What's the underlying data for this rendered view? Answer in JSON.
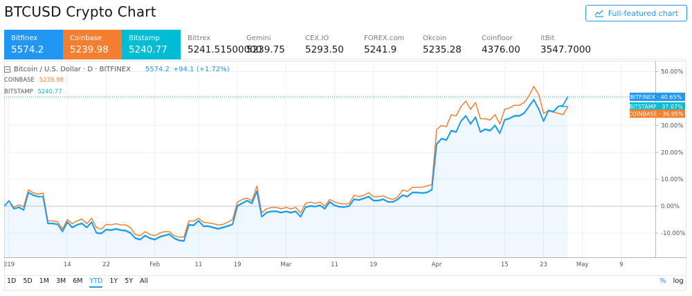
{
  "title": "BTCUSD Crypto Chart",
  "full_button": "Full-featured chart",
  "tabs": [
    {
      "name": "Bitfinex",
      "value": "5574.2",
      "bg": "#2196f3"
    },
    {
      "name": "Coinbase",
      "value": "5239.98",
      "bg": "#f57f30"
    },
    {
      "name": "Bitstamp",
      "value": "5240.77",
      "bg": "#00bcd4"
    },
    {
      "name": "Bittrex",
      "value": "5241.51500000"
    },
    {
      "name": "Gemini",
      "value": "5239.75"
    },
    {
      "name": "CEX.IO",
      "value": "5293.50"
    },
    {
      "name": "FOREX.com",
      "value": "5241.9"
    },
    {
      "name": "Okcoin",
      "value": "5235.28"
    },
    {
      "name": "Coinfloor",
      "value": "4376.00"
    },
    {
      "name": "itBit",
      "value": "3547.7000"
    }
  ],
  "legend": {
    "main_symbol": "Bitcoin / U.S. Dollar · D · BITFINEX",
    "main_value": "5574.2",
    "main_change": "+94.1 (+1.72%)",
    "compare": [
      {
        "name": "COINBASE",
        "value": "5239.98"
      },
      {
        "name": "BITSTAMP",
        "value": "5240.77"
      }
    ]
  },
  "range_buttons": [
    "1D",
    "5D",
    "1M",
    "3M",
    "6M",
    "YTD",
    "1Y",
    "5Y",
    "All"
  ],
  "active_range": "YTD",
  "scale_buttons": [
    "%",
    "log"
  ],
  "colors": {
    "bitfinex": "#2196f3",
    "coinbase": "#f57f30",
    "bitstamp": "#00bcd4"
  },
  "chart_data": {
    "type": "line",
    "y_unit": "percent",
    "ylim": [
      -19,
      54
    ],
    "y_ticks": [
      "50.00%",
      "40.00%",
      "30.00%",
      "20.00%",
      "10.00%",
      "0.00%",
      "-10.00%"
    ],
    "x_tick_labels": [
      "019",
      "14",
      "22",
      "Feb",
      "11",
      "19",
      "Mar",
      "11",
      "19",
      "Apr",
      "15",
      "23",
      "May",
      "9"
    ],
    "x_tick_positions": [
      1,
      13,
      21,
      31,
      40,
      48,
      58,
      68,
      76,
      89,
      103,
      111,
      119,
      127
    ],
    "x_range": [
      0,
      134
    ],
    "series": [
      {
        "name": "BITFINEX",
        "label": "40.65%",
        "values": [
          0.0,
          2.0,
          -1.0,
          -0.5,
          -1.5,
          5.0,
          4.0,
          3.5,
          3.5,
          -6.5,
          -6.5,
          -6.8,
          -9.5,
          -6.0,
          -8.0,
          -7.0,
          -6.5,
          -8.0,
          -6.0,
          -10.0,
          -10.2,
          -8.8,
          -9.0,
          -8.5,
          -9.0,
          -9.2,
          -10.0,
          -12.0,
          -12.5,
          -11.0,
          -12.0,
          -12.5,
          -11.5,
          -11.0,
          -10.5,
          -12.0,
          -12.8,
          -13.0,
          -7.0,
          -7.2,
          -5.5,
          -7.5,
          -7.5,
          -8.0,
          -8.5,
          -8.0,
          -7.5,
          -6.8,
          0.0,
          1.0,
          2.0,
          1.0,
          5.5,
          -4.0,
          -2.5,
          -2.0,
          -2.0,
          -2.5,
          -2.0,
          -2.5,
          -2.0,
          -4.0,
          -0.5,
          0.0,
          -0.2,
          0.2,
          -1.0,
          1.5,
          0.2,
          -0.3,
          -0.4,
          0.0,
          2.5,
          2.2,
          2.8,
          3.5,
          2.0,
          2.0,
          2.5,
          1.5,
          1.5,
          2.5,
          4.0,
          3.5,
          5.0,
          5.0,
          4.8,
          5.0,
          6.0,
          23.0,
          25.0,
          24.5,
          28.0,
          27.5,
          31.5,
          33.5,
          30.5,
          33.0,
          27.5,
          28.5,
          28.0,
          30.0,
          27.0,
          32.0,
          32.5,
          33.5,
          33.5,
          34.5,
          37.0,
          39.5,
          36.0,
          31.5,
          35.5,
          35.0,
          37.0,
          37.5,
          40.65
        ]
      },
      {
        "name": "BITSTAMP",
        "label": "37.07%",
        "values": [
          0.0,
          2.0,
          -1.0,
          -0.3,
          -1.3,
          5.2,
          4.2,
          3.6,
          3.6,
          -6.3,
          -6.3,
          -6.7,
          -9.3,
          -5.8,
          -7.8,
          -6.8,
          -6.3,
          -7.8,
          -5.8,
          -9.8,
          -10.0,
          -8.6,
          -8.8,
          -8.3,
          -8.8,
          -9.0,
          -9.8,
          -11.8,
          -12.3,
          -10.8,
          -11.8,
          -12.3,
          -11.3,
          -10.8,
          -10.3,
          -11.8,
          -12.6,
          -12.8,
          -6.8,
          -7.0,
          -5.3,
          -7.3,
          -7.3,
          -7.8,
          -8.3,
          -7.8,
          -7.3,
          -6.6,
          0.2,
          1.2,
          2.2,
          1.2,
          5.7,
          -3.8,
          -2.3,
          -1.8,
          -1.8,
          -2.3,
          -1.8,
          -2.3,
          -1.8,
          -3.8,
          -0.3,
          0.2,
          0.0,
          0.4,
          -0.8,
          1.7,
          0.4,
          -0.1,
          -0.2,
          0.2,
          2.7,
          2.4,
          3.0,
          3.7,
          2.2,
          2.2,
          2.7,
          1.7,
          1.7,
          2.7,
          4.2,
          3.7,
          5.2,
          5.2,
          5.0,
          5.2,
          6.2,
          23.2,
          25.2,
          24.7,
          28.2,
          27.7,
          31.7,
          33.7,
          30.7,
          33.2,
          27.7,
          28.7,
          28.2,
          30.2,
          27.2,
          32.2,
          32.7,
          33.7,
          33.7,
          34.7,
          37.2,
          39.7,
          36.2,
          31.7,
          35.7,
          35.2,
          37.2,
          37.0,
          37.07
        ]
      },
      {
        "name": "COINBASE",
        "label": "36.95%",
        "values": [
          0.0,
          2.0,
          -0.5,
          0.5,
          -0.3,
          6.0,
          5.0,
          4.5,
          4.8,
          -5.5,
          -5.5,
          -5.8,
          -8.5,
          -5.0,
          -6.5,
          -5.5,
          -4.8,
          -6.5,
          -4.5,
          -8.0,
          -8.5,
          -6.8,
          -7.0,
          -6.5,
          -7.0,
          -7.0,
          -8.0,
          -10.5,
          -11.0,
          -9.5,
          -10.5,
          -11.0,
          -10.0,
          -9.5,
          -9.5,
          -11.0,
          -11.5,
          -11.5,
          -5.5,
          -5.5,
          -4.5,
          -6.0,
          -6.2,
          -6.5,
          -7.0,
          -6.8,
          -6.0,
          -5.0,
          1.5,
          2.5,
          3.0,
          2.0,
          7.5,
          -2.5,
          -1.0,
          -0.5,
          -0.5,
          -1.0,
          -0.5,
          -1.0,
          -0.5,
          -2.5,
          1.0,
          1.5,
          1.0,
          1.5,
          0.0,
          2.5,
          1.5,
          1.0,
          0.8,
          1.0,
          4.0,
          3.5,
          4.0,
          5.0,
          3.5,
          3.5,
          3.8,
          3.0,
          2.5,
          3.5,
          6.0,
          5.5,
          7.0,
          7.0,
          7.0,
          7.5,
          8.0,
          28.5,
          30.0,
          29.5,
          34.0,
          33.5,
          37.0,
          39.0,
          36.0,
          38.5,
          32.5,
          32.5,
          32.0,
          34.0,
          30.5,
          36.0,
          36.5,
          37.5,
          37.5,
          38.5,
          41.0,
          44.5,
          41.5,
          34.5,
          35.5,
          35.0,
          34.5,
          34.0,
          36.95
        ]
      }
    ]
  }
}
